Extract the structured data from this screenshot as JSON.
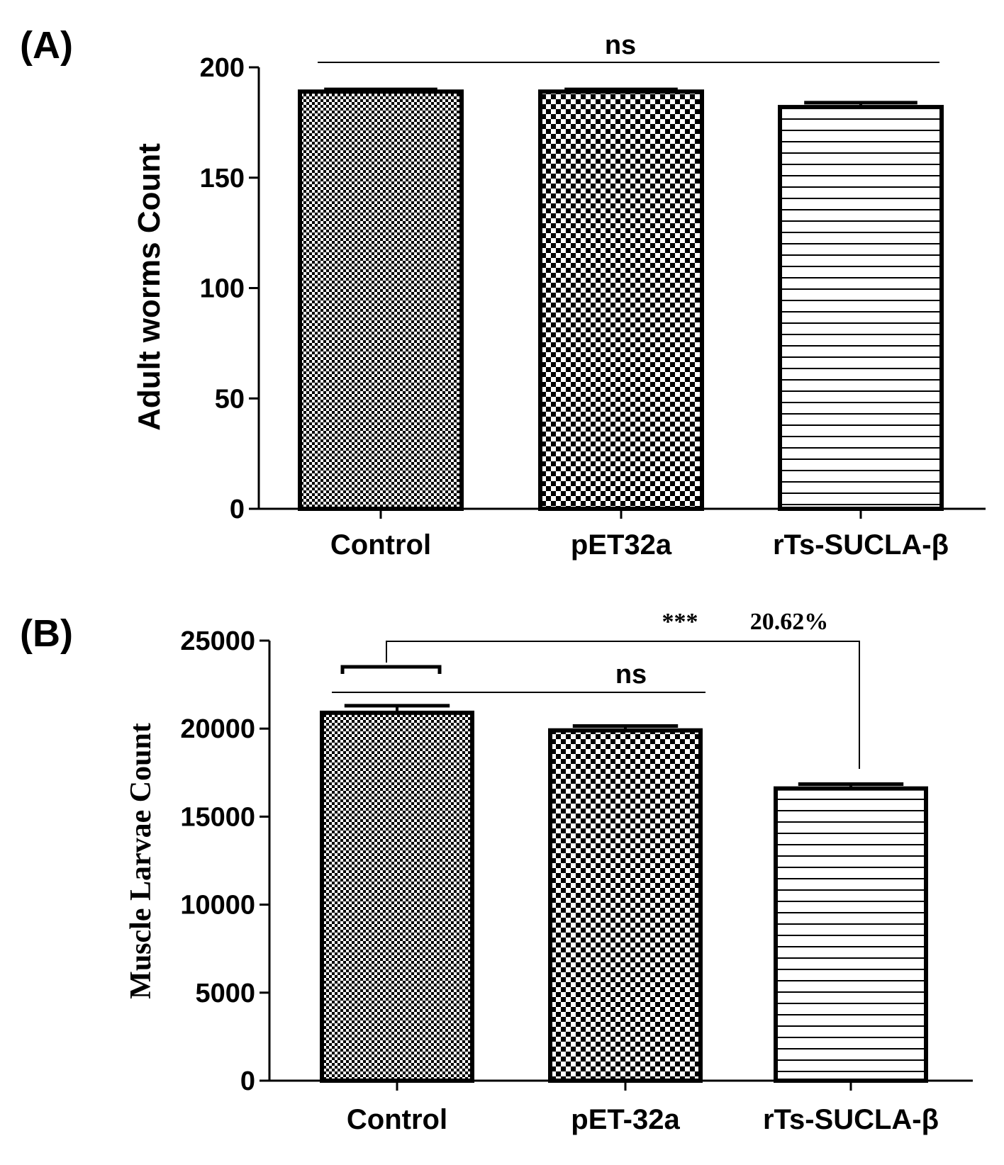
{
  "colors": {
    "ink": "#000000",
    "background": "#ffffff"
  },
  "chart_data": [
    {
      "type": "bar",
      "panel_label": "(A)",
      "title": "",
      "xlabel": "",
      "ylabel": "Adult worms Count",
      "categories": [
        "Control",
        "pET32a",
        "rTs-SUCLA-β"
      ],
      "values": [
        189,
        189,
        182
      ],
      "errors": [
        1,
        1,
        2
      ],
      "patterns": [
        "fine-checker",
        "coarse-checker",
        "horizontal-lines"
      ],
      "ylim": [
        0,
        200
      ],
      "yticks": [
        0,
        50,
        100,
        150,
        200
      ],
      "ytick_labels": [
        "0",
        "50",
        "100",
        "150",
        "200"
      ],
      "grid": false,
      "annotations": [
        {
          "text": "ns",
          "type": "line",
          "from": 0,
          "to": 2,
          "y": 203
        }
      ]
    },
    {
      "type": "bar",
      "panel_label": "(B)",
      "title": "",
      "xlabel": "",
      "ylabel": "Muscle Larvae Count",
      "categories": [
        "Control",
        "pET-32a",
        "rTs-SUCLA-β"
      ],
      "values": [
        20900,
        19900,
        16600
      ],
      "errors": [
        400,
        250,
        250
      ],
      "patterns": [
        "fine-checker",
        "coarse-checker",
        "horizontal-lines"
      ],
      "ylim": [
        0,
        25000
      ],
      "yticks": [
        0,
        5000,
        10000,
        15000,
        20000,
        25000
      ],
      "ytick_labels": [
        "0",
        "5000",
        "10000",
        "15000",
        "20000",
        "25000"
      ],
      "grid": false,
      "annotations": [
        {
          "text": "ns",
          "type": "line",
          "from": 0,
          "to": 1,
          "y": 22000
        },
        {
          "text": "***",
          "type": "significance",
          "from": 0,
          "to": 2,
          "y": 25000
        },
        {
          "text": "20.62%",
          "type": "label",
          "near": 2
        }
      ]
    }
  ]
}
